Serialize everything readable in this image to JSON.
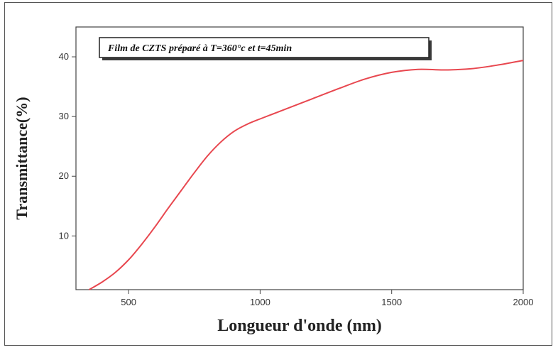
{
  "chart_data": {
    "type": "line",
    "title": "",
    "legend_text": "Film de CZTS préparé à T=360°c et t=45min",
    "legend_placement": "top-left",
    "xlabel": "Longueur d'onde (nm)",
    "ylabel": "Transmittance(%)",
    "xlim": [
      300,
      2000
    ],
    "ylim": [
      1,
      45
    ],
    "xticks": [
      "500",
      "1000",
      "1500",
      "2000"
    ],
    "yticks": [
      "10",
      "20",
      "30",
      "40"
    ],
    "grid": false,
    "line_color": "#e8474f",
    "series": [
      {
        "x": [
          350,
          400,
          450,
          500,
          550,
          600,
          650,
          700,
          750,
          800,
          850,
          900,
          950,
          1000,
          1100,
          1200,
          1300,
          1400,
          1500,
          1600,
          1700,
          1800,
          1900,
          2000
        ],
        "y": [
          1.0,
          2.3,
          3.9,
          6.0,
          8.6,
          11.5,
          14.6,
          17.6,
          20.6,
          23.4,
          25.7,
          27.5,
          28.7,
          29.6,
          31.3,
          33.0,
          34.7,
          36.3,
          37.4,
          37.9,
          37.8,
          38.0,
          38.6,
          39.4
        ]
      }
    ]
  }
}
